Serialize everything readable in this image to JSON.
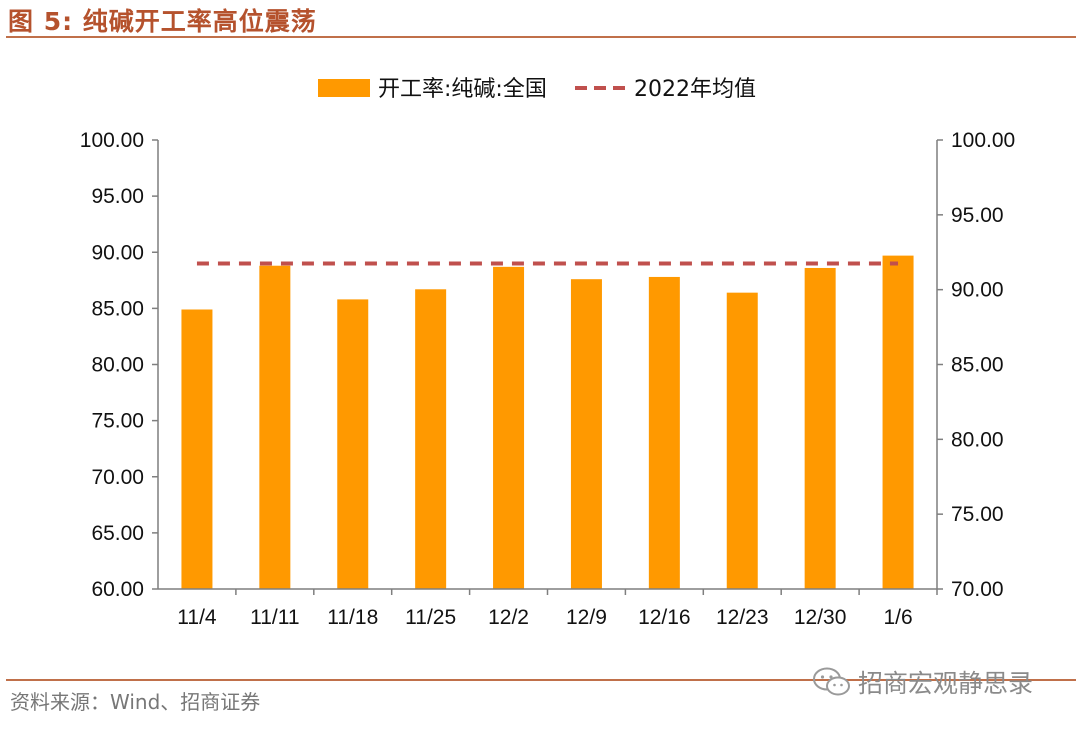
{
  "figure": {
    "title": "图 5:  纯碱开工率高位震荡",
    "source": "资料来源：Wind、招商证券",
    "watermark": "招商宏观静思录"
  },
  "colors": {
    "bar": "#FF9900",
    "avg_line": "#C0504D",
    "axis": "#7f7f7f",
    "accent": "#B5522D"
  },
  "icons": [
    "wechat-icon"
  ],
  "chart_data": {
    "type": "bar",
    "title": "图 5:  纯碱开工率高位震荡",
    "categories": [
      "11/4",
      "11/11",
      "11/18",
      "11/25",
      "12/2",
      "12/9",
      "12/16",
      "12/23",
      "12/30",
      "1/6"
    ],
    "series": [
      {
        "name": "开工率:纯碱:全国",
        "type": "bar",
        "axis": "left",
        "values": [
          84.9,
          88.8,
          85.8,
          86.7,
          88.7,
          87.6,
          87.8,
          86.4,
          88.6,
          89.7
        ]
      },
      {
        "name": "2022年均值",
        "type": "line",
        "style": "dashed",
        "axis": "left",
        "values": [
          89.0,
          89.0,
          89.0,
          89.0,
          89.0,
          89.0,
          89.0,
          89.0,
          89.0,
          89.0
        ]
      }
    ],
    "y_left": {
      "min": 60,
      "max": 100,
      "step": 5,
      "ticks": [
        "60.00",
        "65.00",
        "70.00",
        "75.00",
        "80.00",
        "85.00",
        "90.00",
        "95.00",
        "100.00"
      ]
    },
    "y_right": {
      "min": 70,
      "max": 100,
      "step": 5,
      "ticks": [
        "70.00",
        "75.00",
        "80.00",
        "85.00",
        "90.00",
        "95.00",
        "100.00"
      ]
    },
    "xlabel": "",
    "ylabel": "",
    "legend_position": "top-center"
  }
}
